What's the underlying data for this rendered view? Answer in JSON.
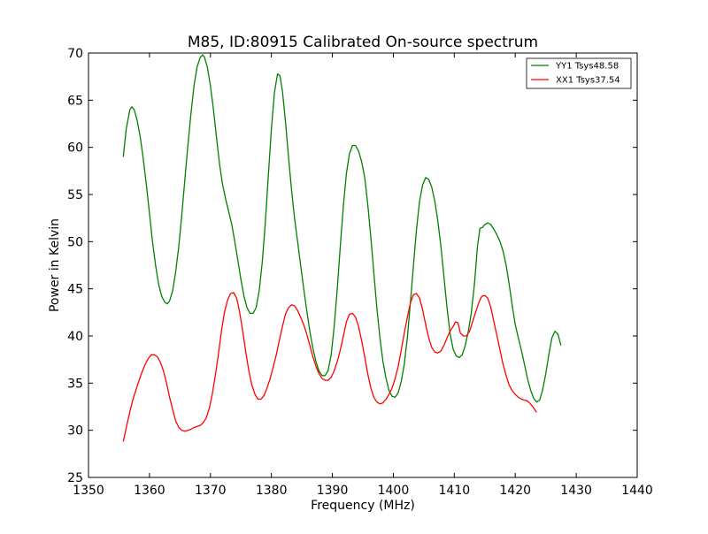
{
  "chart_data": {
    "type": "line",
    "title": "M85, ID:80915 Calibrated On-source spectrum",
    "xlabel": "Frequency (MHz)",
    "ylabel": "Power in Kelvin",
    "xlim": [
      1350,
      1440
    ],
    "ylim": [
      25,
      70
    ],
    "xticks": [
      1350,
      1360,
      1370,
      1380,
      1390,
      1400,
      1410,
      1420,
      1430,
      1440
    ],
    "yticks": [
      25,
      30,
      35,
      40,
      45,
      50,
      55,
      60,
      65,
      70
    ],
    "grid": false,
    "legend_position": "top-right",
    "series": [
      {
        "name": "YY1 Tsys48.58",
        "color": "#008000",
        "points": [
          [
            1355.7,
            59.0
          ],
          [
            1356.2,
            62.0
          ],
          [
            1356.8,
            64.0
          ],
          [
            1357.1,
            64.3
          ],
          [
            1357.5,
            64.0
          ],
          [
            1358.0,
            62.8
          ],
          [
            1358.5,
            61.0
          ],
          [
            1359.0,
            58.7
          ],
          [
            1359.5,
            56.0
          ],
          [
            1360.0,
            53.0
          ],
          [
            1360.5,
            50.0
          ],
          [
            1361.0,
            47.5
          ],
          [
            1361.5,
            45.5
          ],
          [
            1362.0,
            44.2
          ],
          [
            1362.5,
            43.6
          ],
          [
            1362.9,
            43.4
          ],
          [
            1363.3,
            43.7
          ],
          [
            1363.8,
            44.8
          ],
          [
            1364.3,
            46.8
          ],
          [
            1364.8,
            49.5
          ],
          [
            1365.3,
            52.8
          ],
          [
            1365.8,
            56.5
          ],
          [
            1366.3,
            60.2
          ],
          [
            1366.8,
            63.5
          ],
          [
            1367.3,
            66.5
          ],
          [
            1367.8,
            68.5
          ],
          [
            1368.3,
            69.5
          ],
          [
            1368.7,
            69.8
          ],
          [
            1369.0,
            69.6
          ],
          [
            1369.5,
            68.5
          ],
          [
            1370.0,
            66.5
          ],
          [
            1370.5,
            64.0
          ],
          [
            1371.0,
            61.0
          ],
          [
            1371.5,
            58.2
          ],
          [
            1372.0,
            56.0
          ],
          [
            1372.5,
            54.5
          ],
          [
            1373.0,
            53.2
          ],
          [
            1373.5,
            51.8
          ],
          [
            1374.0,
            50.0
          ],
          [
            1374.5,
            48.0
          ],
          [
            1375.0,
            46.0
          ],
          [
            1375.5,
            44.2
          ],
          [
            1376.0,
            43.0
          ],
          [
            1376.5,
            42.4
          ],
          [
            1377.0,
            42.4
          ],
          [
            1377.5,
            43.0
          ],
          [
            1378.0,
            44.8
          ],
          [
            1378.5,
            47.8
          ],
          [
            1379.0,
            52.0
          ],
          [
            1379.5,
            57.0
          ],
          [
            1380.0,
            62.0
          ],
          [
            1380.5,
            65.8
          ],
          [
            1381.0,
            67.8
          ],
          [
            1381.4,
            67.6
          ],
          [
            1381.8,
            66.0
          ],
          [
            1382.3,
            62.8
          ],
          [
            1382.8,
            59.0
          ],
          [
            1383.3,
            55.5
          ],
          [
            1383.8,
            52.5
          ],
          [
            1384.3,
            50.0
          ],
          [
            1384.8,
            47.5
          ],
          [
            1385.3,
            45.0
          ],
          [
            1385.8,
            42.7
          ],
          [
            1386.3,
            40.5
          ],
          [
            1386.8,
            38.7
          ],
          [
            1387.3,
            37.3
          ],
          [
            1387.8,
            36.3
          ],
          [
            1388.3,
            35.8
          ],
          [
            1388.8,
            35.8
          ],
          [
            1389.3,
            36.3
          ],
          [
            1389.8,
            38.0
          ],
          [
            1390.3,
            41.0
          ],
          [
            1390.8,
            45.0
          ],
          [
            1391.3,
            49.5
          ],
          [
            1391.8,
            53.8
          ],
          [
            1392.3,
            57.2
          ],
          [
            1392.8,
            59.3
          ],
          [
            1393.3,
            60.2
          ],
          [
            1393.8,
            60.2
          ],
          [
            1394.3,
            59.6
          ],
          [
            1394.8,
            58.5
          ],
          [
            1395.3,
            56.8
          ],
          [
            1395.8,
            54.0
          ],
          [
            1396.3,
            50.5
          ],
          [
            1396.8,
            46.7
          ],
          [
            1397.3,
            43.0
          ],
          [
            1397.8,
            39.8
          ],
          [
            1398.3,
            37.3
          ],
          [
            1398.8,
            35.5
          ],
          [
            1399.3,
            34.2
          ],
          [
            1399.8,
            33.6
          ],
          [
            1400.3,
            33.5
          ],
          [
            1400.8,
            34.0
          ],
          [
            1401.3,
            35.2
          ],
          [
            1401.8,
            37.0
          ],
          [
            1402.3,
            39.8
          ],
          [
            1402.8,
            43.5
          ],
          [
            1403.3,
            47.5
          ],
          [
            1403.8,
            51.3
          ],
          [
            1404.3,
            54.3
          ],
          [
            1404.8,
            56.0
          ],
          [
            1405.3,
            56.8
          ],
          [
            1405.8,
            56.6
          ],
          [
            1406.3,
            55.8
          ],
          [
            1406.8,
            54.3
          ],
          [
            1407.3,
            52.2
          ],
          [
            1407.8,
            49.5
          ],
          [
            1408.3,
            46.3
          ],
          [
            1408.8,
            43.0
          ],
          [
            1409.3,
            40.3
          ],
          [
            1409.8,
            38.6
          ],
          [
            1410.3,
            37.9
          ],
          [
            1410.8,
            37.7
          ],
          [
            1411.3,
            38.0
          ],
          [
            1411.8,
            39.0
          ],
          [
            1412.3,
            40.5
          ],
          [
            1412.8,
            42.5
          ],
          [
            1413.3,
            45.5
          ],
          [
            1413.8,
            49.5
          ],
          [
            1414.2,
            51.4
          ],
          [
            1414.6,
            51.5
          ],
          [
            1415.0,
            51.8
          ],
          [
            1415.5,
            52.0
          ],
          [
            1416.0,
            51.8
          ],
          [
            1416.5,
            51.3
          ],
          [
            1417.0,
            50.7
          ],
          [
            1417.5,
            50.0
          ],
          [
            1418.0,
            49.0
          ],
          [
            1418.5,
            47.5
          ],
          [
            1419.0,
            45.5
          ],
          [
            1419.5,
            43.2
          ],
          [
            1420.0,
            41.2
          ],
          [
            1420.5,
            39.8
          ],
          [
            1421.0,
            38.5
          ],
          [
            1421.5,
            37.0
          ],
          [
            1422.0,
            35.5
          ],
          [
            1422.5,
            34.3
          ],
          [
            1423.0,
            33.4
          ],
          [
            1423.5,
            33.0
          ],
          [
            1424.0,
            33.2
          ],
          [
            1424.5,
            34.3
          ],
          [
            1425.0,
            36.0
          ],
          [
            1425.5,
            38.0
          ],
          [
            1426.0,
            39.8
          ],
          [
            1426.5,
            40.5
          ],
          [
            1427.0,
            40.2
          ],
          [
            1427.5,
            39.0
          ]
        ]
      },
      {
        "name": "XX1 Tsys37.54",
        "color": "#ff0000",
        "points": [
          [
            1355.7,
            28.8
          ],
          [
            1356.2,
            30.3
          ],
          [
            1356.8,
            32.0
          ],
          [
            1357.3,
            33.3
          ],
          [
            1357.8,
            34.3
          ],
          [
            1358.3,
            35.3
          ],
          [
            1358.8,
            36.2
          ],
          [
            1359.3,
            37.0
          ],
          [
            1359.8,
            37.6
          ],
          [
            1360.3,
            38.0
          ],
          [
            1360.8,
            38.0
          ],
          [
            1361.3,
            37.8
          ],
          [
            1361.8,
            37.2
          ],
          [
            1362.3,
            36.3
          ],
          [
            1362.8,
            35.0
          ],
          [
            1363.3,
            33.5
          ],
          [
            1363.8,
            32.2
          ],
          [
            1364.3,
            31.0
          ],
          [
            1364.8,
            30.3
          ],
          [
            1365.3,
            30.0
          ],
          [
            1365.8,
            29.9
          ],
          [
            1366.3,
            30.0
          ],
          [
            1366.8,
            30.1
          ],
          [
            1367.3,
            30.3
          ],
          [
            1367.8,
            30.4
          ],
          [
            1368.3,
            30.5
          ],
          [
            1368.8,
            30.8
          ],
          [
            1369.3,
            31.3
          ],
          [
            1369.8,
            32.3
          ],
          [
            1370.3,
            33.8
          ],
          [
            1370.8,
            35.8
          ],
          [
            1371.3,
            38.0
          ],
          [
            1371.8,
            40.5
          ],
          [
            1372.3,
            42.5
          ],
          [
            1372.8,
            43.8
          ],
          [
            1373.3,
            44.5
          ],
          [
            1373.8,
            44.6
          ],
          [
            1374.3,
            44.0
          ],
          [
            1374.8,
            42.5
          ],
          [
            1375.3,
            40.5
          ],
          [
            1375.8,
            38.3
          ],
          [
            1376.3,
            36.3
          ],
          [
            1376.8,
            34.8
          ],
          [
            1377.3,
            33.8
          ],
          [
            1377.8,
            33.3
          ],
          [
            1378.3,
            33.3
          ],
          [
            1378.8,
            33.7
          ],
          [
            1379.3,
            34.5
          ],
          [
            1379.8,
            35.5
          ],
          [
            1380.3,
            36.7
          ],
          [
            1380.8,
            38.0
          ],
          [
            1381.3,
            39.5
          ],
          [
            1381.8,
            41.0
          ],
          [
            1382.3,
            42.3
          ],
          [
            1382.8,
            43.0
          ],
          [
            1383.3,
            43.3
          ],
          [
            1383.8,
            43.2
          ],
          [
            1384.3,
            42.7
          ],
          [
            1384.8,
            42.0
          ],
          [
            1385.3,
            41.2
          ],
          [
            1385.8,
            40.2
          ],
          [
            1386.3,
            39.0
          ],
          [
            1386.8,
            37.8
          ],
          [
            1387.3,
            36.8
          ],
          [
            1387.8,
            36.0
          ],
          [
            1388.3,
            35.5
          ],
          [
            1388.8,
            35.3
          ],
          [
            1389.3,
            35.3
          ],
          [
            1389.8,
            35.6
          ],
          [
            1390.3,
            36.3
          ],
          [
            1390.8,
            37.3
          ],
          [
            1391.3,
            38.5
          ],
          [
            1391.8,
            40.0
          ],
          [
            1392.3,
            41.5
          ],
          [
            1392.8,
            42.3
          ],
          [
            1393.3,
            42.4
          ],
          [
            1393.8,
            42.0
          ],
          [
            1394.3,
            41.0
          ],
          [
            1394.8,
            39.5
          ],
          [
            1395.3,
            37.8
          ],
          [
            1395.8,
            36.0
          ],
          [
            1396.3,
            34.5
          ],
          [
            1396.8,
            33.5
          ],
          [
            1397.3,
            33.0
          ],
          [
            1397.8,
            32.8
          ],
          [
            1398.3,
            32.9
          ],
          [
            1398.8,
            33.3
          ],
          [
            1399.3,
            33.8
          ],
          [
            1399.8,
            34.5
          ],
          [
            1400.3,
            35.5
          ],
          [
            1400.8,
            36.8
          ],
          [
            1401.3,
            38.5
          ],
          [
            1401.8,
            40.3
          ],
          [
            1402.3,
            42.0
          ],
          [
            1402.8,
            43.5
          ],
          [
            1403.3,
            44.4
          ],
          [
            1403.8,
            44.5
          ],
          [
            1404.3,
            44.0
          ],
          [
            1404.8,
            42.8
          ],
          [
            1405.3,
            41.2
          ],
          [
            1405.8,
            39.8
          ],
          [
            1406.3,
            38.8
          ],
          [
            1406.8,
            38.3
          ],
          [
            1407.3,
            38.2
          ],
          [
            1407.8,
            38.4
          ],
          [
            1408.3,
            39.0
          ],
          [
            1408.8,
            39.8
          ],
          [
            1409.3,
            40.5
          ],
          [
            1409.8,
            41.0
          ],
          [
            1410.2,
            41.5
          ],
          [
            1410.6,
            41.4
          ],
          [
            1411.0,
            40.3
          ],
          [
            1411.5,
            40.0
          ],
          [
            1412.0,
            40.0
          ],
          [
            1412.5,
            40.5
          ],
          [
            1413.0,
            41.5
          ],
          [
            1413.5,
            42.5
          ],
          [
            1414.0,
            43.5
          ],
          [
            1414.5,
            44.2
          ],
          [
            1415.0,
            44.3
          ],
          [
            1415.5,
            44.0
          ],
          [
            1416.0,
            43.0
          ],
          [
            1416.5,
            41.5
          ],
          [
            1417.0,
            40.0
          ],
          [
            1417.5,
            38.5
          ],
          [
            1418.0,
            37.0
          ],
          [
            1418.5,
            35.8
          ],
          [
            1419.0,
            34.8
          ],
          [
            1419.5,
            34.2
          ],
          [
            1420.0,
            33.8
          ],
          [
            1420.5,
            33.5
          ],
          [
            1421.0,
            33.3
          ],
          [
            1421.5,
            33.2
          ],
          [
            1422.0,
            33.1
          ],
          [
            1422.5,
            32.8
          ],
          [
            1423.0,
            32.4
          ],
          [
            1423.5,
            31.9
          ]
        ]
      }
    ]
  }
}
